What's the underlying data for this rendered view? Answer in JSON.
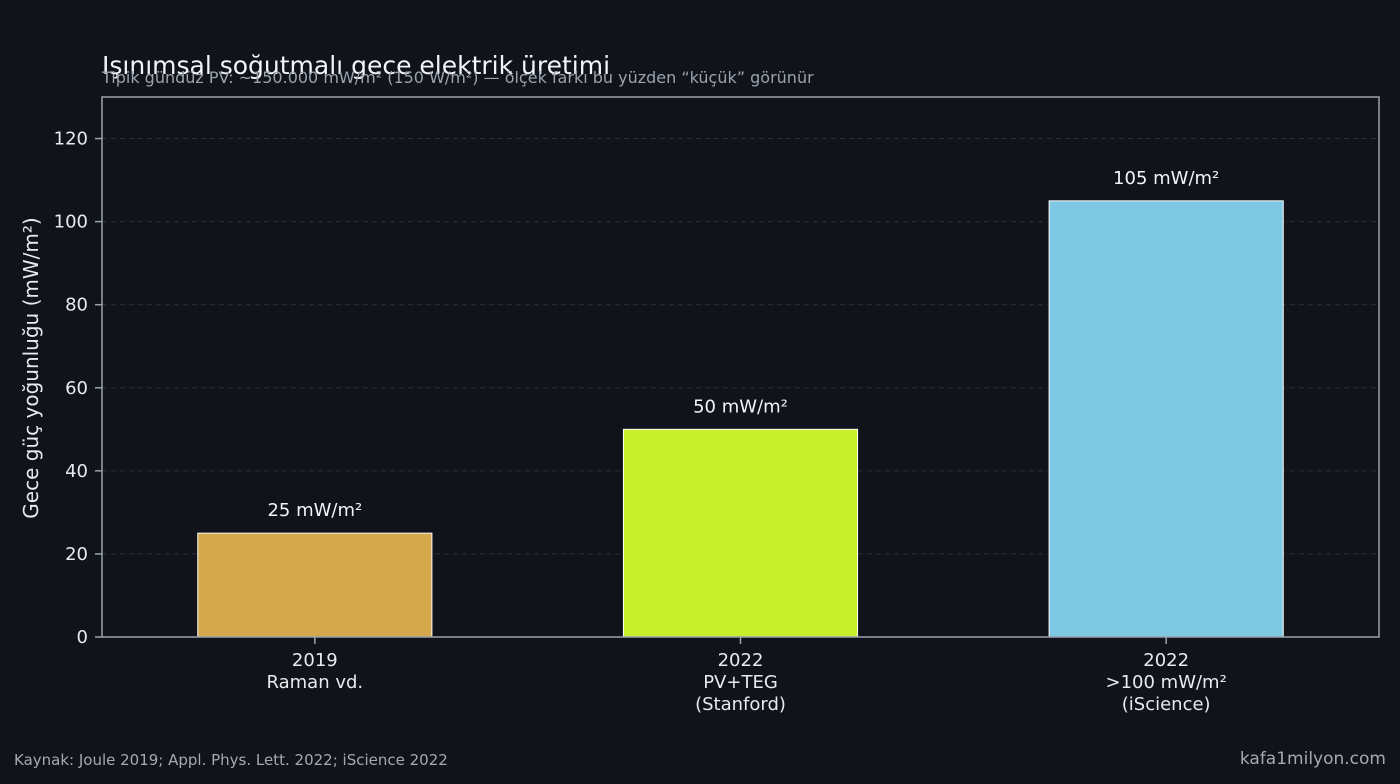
{
  "chart_data": {
    "type": "bar",
    "title": "Işınımsal soğutmalı gece elektrik üretimi",
    "subtitle": "Tipik gündüz PV: ~150.000 mW/m² (150 W/m²) — ölçek farkı bu yüzden “küçük” görünür",
    "xlabel": "",
    "ylabel": "Gece güç yoğunluğu (mW/m²)",
    "ylim": [
      0,
      130
    ],
    "yticks": [
      0,
      20,
      40,
      60,
      80,
      100,
      120
    ],
    "grid": true,
    "categories": [
      [
        "2019",
        "Raman vd."
      ],
      [
        "2022",
        "PV+TEG",
        "(Stanford)"
      ],
      [
        "2022",
        ">100 mW/m²",
        "(iScience)"
      ]
    ],
    "values": [
      25,
      50,
      105
    ],
    "data_labels": [
      "25 mW/m²",
      "50 mW/m²",
      "105 mW/m²"
    ],
    "colors": [
      "#d4a84b",
      "#c8f02a",
      "#7ec8e3"
    ]
  },
  "footer": {
    "source": "Kaynak: Joule 2019; Appl. Phys. Lett. 2022; iScience 2022",
    "site": "kafa1milyon.com"
  },
  "style": {
    "background": "#10131a",
    "axis_color": "#9aa3ae",
    "grid_color": "#2a2f38"
  }
}
